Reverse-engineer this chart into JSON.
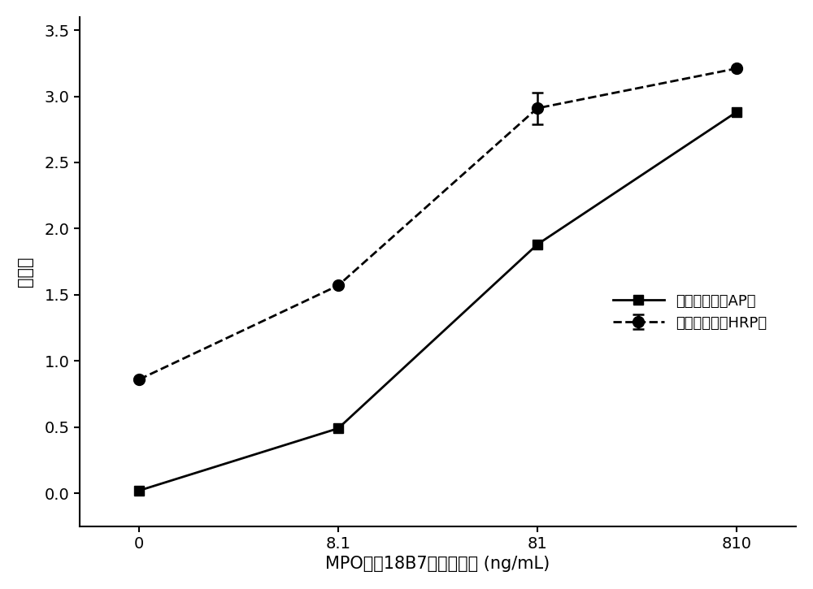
{
  "x_positions": [
    0,
    1,
    2,
    3
  ],
  "x_labels": [
    "0",
    "8.1",
    "81",
    "810"
  ],
  "ap_values": [
    0.02,
    0.49,
    1.88,
    2.88
  ],
  "hrp_values": [
    0.86,
    1.57,
    2.91,
    3.21
  ],
  "hrp_yerr": [
    0.0,
    0.0,
    0.12,
    0.0
  ],
  "xlabel": "MPO单抓18B7的不同浓度 (ng/mL)",
  "ylabel": "吸光度",
  "legend_ap": "碱性磷酸酶（AP）",
  "legend_hrp": "过氧化物酶（HRP）",
  "ylim": [
    -0.25,
    3.6
  ],
  "yticks": [
    0.0,
    0.5,
    1.0,
    1.5,
    2.0,
    2.5,
    3.0,
    3.5
  ],
  "line_color": "#000000",
  "bg_color": "#ffffff",
  "label_fontsize": 15,
  "tick_fontsize": 14,
  "legend_fontsize": 13
}
